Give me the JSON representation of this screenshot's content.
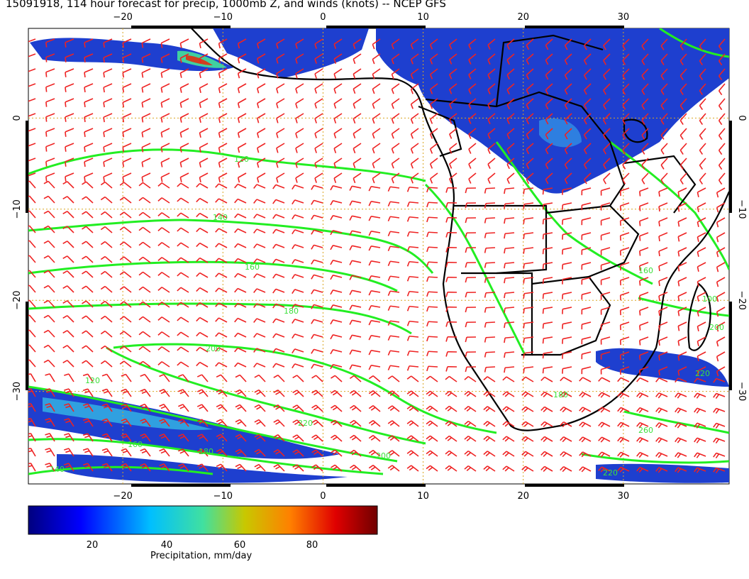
{
  "title": "15091918, 114 hour forecast for precip, 1000mb Z, and winds (knots) -- NCEP GFS",
  "map": {
    "lon_range": [
      -30,
      40
    ],
    "lat_range": [
      -40,
      10
    ],
    "lon_ticks": [
      "−20",
      "−10",
      "0",
      "10",
      "20",
      "30"
    ],
    "lat_ticks": [
      "0",
      "−10",
      "−20",
      "−30"
    ],
    "grid_color": "#d9a520",
    "coast_color": "#000000",
    "contour_color": "#22ee22",
    "barb_color": "#ee2222",
    "contour_labels": [
      "120",
      "140",
      "160",
      "180",
      "200",
      "220",
      "200",
      "180",
      "160",
      "140",
      "120",
      "260",
      "220",
      "180",
      "160",
      "100",
      "200",
      "220"
    ]
  },
  "colorbar": {
    "ticks": [
      "20",
      "40",
      "60",
      "80"
    ],
    "label": "Precipitation, mm/day",
    "colors": [
      "#00007f",
      "#0000ff",
      "#00bfff",
      "#40e0c0",
      "#c8c800",
      "#ff7f00",
      "#e00000",
      "#7f0000"
    ]
  }
}
